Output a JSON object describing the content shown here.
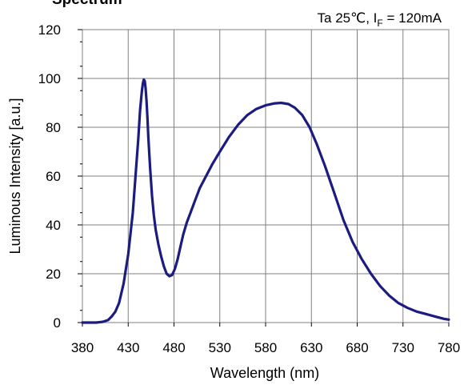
{
  "chart_data": {
    "type": "line",
    "title": "Spectrum",
    "condition": {
      "prefix": "Ta 25℃,  I",
      "subscript": "F",
      "suffix": " = 120mA"
    },
    "xlabel": "Wavelength (nm)",
    "ylabel": "Luminous Intensity  [a.u.]",
    "xlim": [
      380,
      780
    ],
    "ylim": [
      0,
      120
    ],
    "xticks": [
      380,
      430,
      480,
      530,
      580,
      630,
      680,
      730,
      780
    ],
    "yticks": [
      0,
      20,
      40,
      60,
      80,
      100,
      120
    ],
    "grid": true,
    "line_color": "#1c1c80",
    "series": [
      {
        "x": [
          380,
          395,
          402,
          408,
          412,
          416,
          420,
          425,
          430,
          435,
          438,
          441,
          443,
          445,
          446,
          447,
          448,
          449,
          450,
          451,
          452,
          454,
          456,
          458,
          460,
          463,
          466,
          469,
          472,
          475,
          478,
          481,
          484,
          487,
          490,
          494,
          498,
          503,
          508,
          515,
          522,
          530,
          540,
          550,
          560,
          570,
          580,
          590,
          597,
          605,
          612,
          620,
          628,
          636,
          645,
          655,
          665,
          675,
          685,
          695,
          705,
          715,
          725,
          735,
          745,
          755,
          765,
          775,
          780
        ],
        "y": [
          0,
          0,
          0.3,
          1,
          2.5,
          4.5,
          8,
          16,
          28,
          45,
          60,
          75,
          87,
          95,
          98,
          99.5,
          99,
          96,
          91,
          84,
          76,
          63,
          52,
          44,
          38,
          32,
          27,
          23,
          20,
          19,
          19.5,
          22,
          26,
          31,
          36,
          41,
          45,
          50,
          55,
          60,
          65,
          70,
          76,
          81,
          85,
          87.5,
          89,
          89.8,
          90,
          89.5,
          88,
          85,
          80,
          73,
          64,
          53,
          42,
          33,
          26,
          20,
          15,
          11,
          8,
          6,
          4.5,
          3.5,
          2.5,
          1.5,
          1.2
        ]
      }
    ]
  }
}
